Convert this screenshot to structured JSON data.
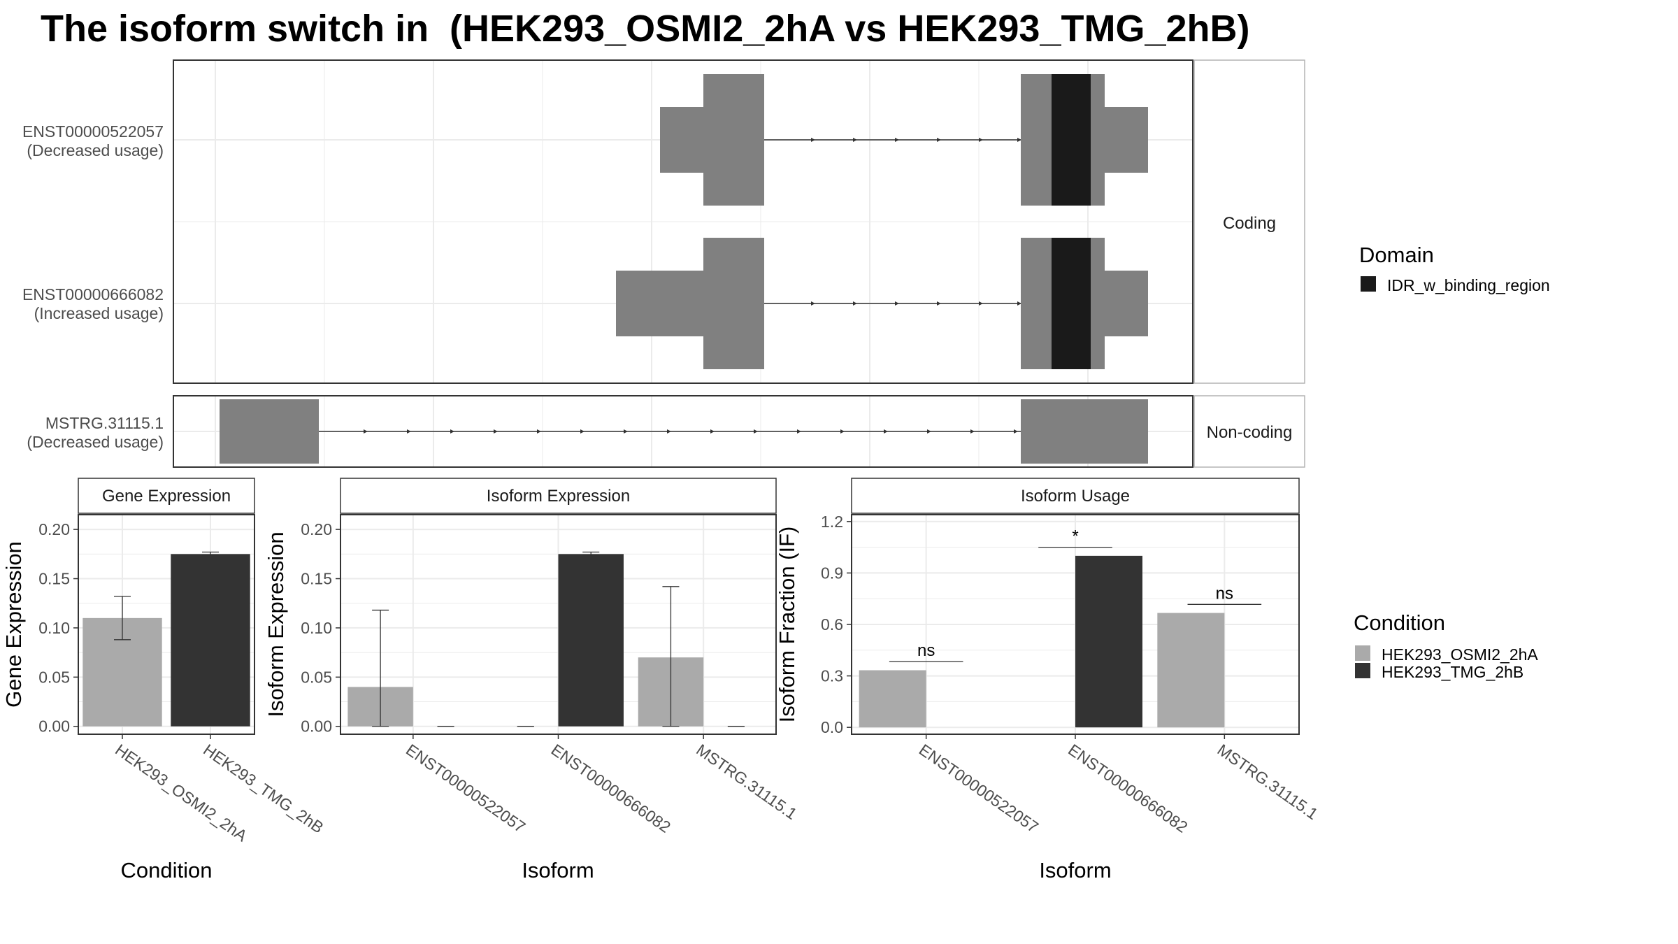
{
  "title": "The isoform switch in  (HEK293_OSMI2_2hA vs HEK293_TMG_2hB)",
  "colors": {
    "cond_a": "#aaaaaa",
    "cond_b": "#333333",
    "exon": "#808080",
    "domain": "#1a1a1a",
    "grid": "#ebebeb",
    "panel_border": "#333333",
    "strip_border": "#b3b3b3"
  },
  "transcripts": [
    {
      "id": "ENST00000522057",
      "usage": "(Decreased usage)",
      "facet": "Coding"
    },
    {
      "id": "ENST00000666082",
      "usage": "(Increased usage)",
      "facet": "Coding"
    },
    {
      "id": "MSTRG.31115.1",
      "usage": "(Decreased usage)",
      "facet": "Non-coding"
    }
  ],
  "facets": [
    "Coding",
    "Non-coding"
  ],
  "domain_legend": {
    "title": "Domain",
    "items": [
      {
        "label": "IDR_w_binding_region",
        "color": "#1a1a1a"
      }
    ]
  },
  "condition_legend": {
    "title": "Condition",
    "items": [
      {
        "label": "HEK293_OSMI2_2hA",
        "color": "#aaaaaa"
      },
      {
        "label": "HEK293_TMG_2hB",
        "color": "#333333"
      }
    ]
  },
  "chart_data": [
    {
      "type": "bar",
      "strip": "Gene Expression",
      "xlabel": "Condition",
      "ylabel": "Gene Expression",
      "categories": [
        "HEK293_OSMI2_2hA",
        "HEK293_TMG_2hB"
      ],
      "values": [
        0.11,
        0.175
      ],
      "error_low": [
        0.088,
        0.174
      ],
      "error_high": [
        0.132,
        0.177
      ],
      "ylim": [
        -0.008,
        0.215
      ],
      "yticks": [
        0.0,
        0.05,
        0.1,
        0.15,
        0.2
      ],
      "ytick_labels": [
        "0.00",
        "0.05",
        "0.10",
        "0.15",
        "0.20"
      ]
    },
    {
      "type": "bar",
      "strip": "Isoform Expression",
      "xlabel": "Isoform",
      "ylabel": "Isoform Expression",
      "categories": [
        "ENST00000522057",
        "ENST00000666082",
        "MSTRG.31115.1"
      ],
      "series": [
        {
          "name": "HEK293_OSMI2_2hA",
          "values": [
            0.04,
            0.0,
            0.07
          ],
          "error_low": [
            0.0,
            0.0,
            0.0
          ],
          "error_high": [
            0.118,
            0.0,
            0.142
          ]
        },
        {
          "name": "HEK293_TMG_2hB",
          "values": [
            0.0,
            0.175,
            0.0
          ],
          "error_low": [
            0.0,
            0.174,
            0.0
          ],
          "error_high": [
            0.0,
            0.177,
            0.0
          ]
        }
      ],
      "ylim": [
        -0.008,
        0.215
      ],
      "yticks": [
        0.0,
        0.05,
        0.1,
        0.15,
        0.2
      ],
      "ytick_labels": [
        "0.00",
        "0.05",
        "0.10",
        "0.15",
        "0.20"
      ]
    },
    {
      "type": "bar",
      "strip": "Isoform Usage",
      "xlabel": "Isoform",
      "ylabel": "Isoform Fraction (IF)",
      "categories": [
        "ENST00000522057",
        "ENST00000666082",
        "MSTRG.31115.1"
      ],
      "series": [
        {
          "name": "HEK293_OSMI2_2hA",
          "values": [
            0.333,
            0.0,
            0.667
          ]
        },
        {
          "name": "HEK293_TMG_2hB",
          "values": [
            0.0,
            1.0,
            0.0
          ]
        }
      ],
      "significance": [
        "ns",
        "*",
        "ns"
      ],
      "significance_y": [
        1.05,
        1.23,
        1.63
      ],
      "ylim": [
        -0.04,
        1.24
      ],
      "yticks": [
        0.0,
        0.3,
        0.6,
        0.9,
        1.2
      ],
      "ytick_labels": [
        "0.0",
        "0.3",
        "0.6",
        "0.9",
        "1.2"
      ]
    }
  ]
}
